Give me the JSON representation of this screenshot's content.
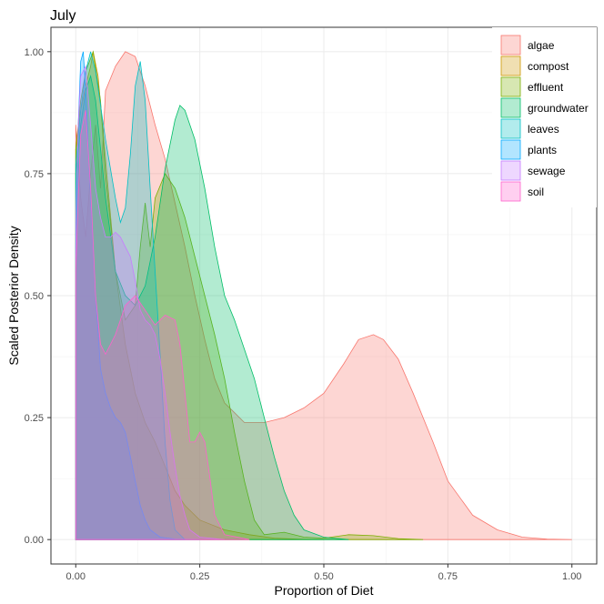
{
  "chart_data": {
    "type": "area",
    "title": "July",
    "xlabel": "Proportion of Diet",
    "ylabel": "Scaled Posterior Density",
    "xlim": [
      -0.05,
      1.05
    ],
    "ylim": [
      -0.05,
      1.05
    ],
    "x_ticks": [
      {
        "value": 0,
        "label": "0.00"
      },
      {
        "value": 0.25,
        "label": "0.25"
      },
      {
        "value": 0.5,
        "label": "0.50"
      },
      {
        "value": 0.75,
        "label": "0.75"
      },
      {
        "value": 1.0,
        "label": "1.00"
      }
    ],
    "y_ticks": [
      {
        "value": 0,
        "label": "0.00"
      },
      {
        "value": 0.25,
        "label": "0.25"
      },
      {
        "value": 0.5,
        "label": "0.50"
      },
      {
        "value": 0.75,
        "label": "0.75"
      },
      {
        "value": 1.0,
        "label": "1.00"
      }
    ],
    "grid": true,
    "legend_position": "top-right",
    "series": [
      {
        "name": "algae",
        "color": "#F8766D",
        "points": [
          [
            0,
            0.85
          ],
          [
            0.01,
            0.7
          ],
          [
            0.02,
            0.62
          ],
          [
            0.03,
            0.75
          ],
          [
            0.04,
            0.85
          ],
          [
            0.05,
            0.72
          ],
          [
            0.06,
            0.92
          ],
          [
            0.08,
            0.97
          ],
          [
            0.1,
            1.0
          ],
          [
            0.12,
            0.99
          ],
          [
            0.14,
            0.93
          ],
          [
            0.16,
            0.85
          ],
          [
            0.18,
            0.78
          ],
          [
            0.2,
            0.69
          ],
          [
            0.22,
            0.6
          ],
          [
            0.24,
            0.5
          ],
          [
            0.26,
            0.41
          ],
          [
            0.28,
            0.33
          ],
          [
            0.3,
            0.28
          ],
          [
            0.32,
            0.26
          ],
          [
            0.34,
            0.24
          ],
          [
            0.38,
            0.24
          ],
          [
            0.42,
            0.25
          ],
          [
            0.46,
            0.27
          ],
          [
            0.5,
            0.3
          ],
          [
            0.54,
            0.36
          ],
          [
            0.57,
            0.41
          ],
          [
            0.6,
            0.42
          ],
          [
            0.62,
            0.41
          ],
          [
            0.65,
            0.37
          ],
          [
            0.68,
            0.3
          ],
          [
            0.72,
            0.2
          ],
          [
            0.75,
            0.12
          ],
          [
            0.8,
            0.05
          ],
          [
            0.85,
            0.02
          ],
          [
            0.9,
            0.005
          ],
          [
            0.95,
            0.001
          ],
          [
            1.0,
            0
          ]
        ]
      },
      {
        "name": "compost",
        "color": "#CD9600",
        "points": [
          [
            0,
            0.8
          ],
          [
            0.01,
            0.88
          ],
          [
            0.02,
            0.93
          ],
          [
            0.03,
            0.97
          ],
          [
            0.035,
            1.0
          ],
          [
            0.045,
            0.95
          ],
          [
            0.06,
            0.78
          ],
          [
            0.08,
            0.55
          ],
          [
            0.1,
            0.4
          ],
          [
            0.12,
            0.3
          ],
          [
            0.14,
            0.24
          ],
          [
            0.16,
            0.2
          ],
          [
            0.18,
            0.15
          ],
          [
            0.2,
            0.1
          ],
          [
            0.22,
            0.07
          ],
          [
            0.25,
            0.04
          ],
          [
            0.3,
            0.02
          ],
          [
            0.35,
            0.01
          ],
          [
            0.4,
            0.003
          ],
          [
            0.45,
            0.001
          ],
          [
            0.5,
            0
          ]
        ]
      },
      {
        "name": "effluent",
        "color": "#7CAE00",
        "points": [
          [
            0,
            0.8
          ],
          [
            0.01,
            0.9
          ],
          [
            0.02,
            0.96
          ],
          [
            0.035,
            1.0
          ],
          [
            0.05,
            0.9
          ],
          [
            0.06,
            0.75
          ],
          [
            0.08,
            0.55
          ],
          [
            0.1,
            0.45
          ],
          [
            0.12,
            0.48
          ],
          [
            0.13,
            0.6
          ],
          [
            0.14,
            0.69
          ],
          [
            0.15,
            0.6
          ],
          [
            0.16,
            0.7
          ],
          [
            0.18,
            0.75
          ],
          [
            0.2,
            0.72
          ],
          [
            0.22,
            0.66
          ],
          [
            0.24,
            0.58
          ],
          [
            0.26,
            0.5
          ],
          [
            0.28,
            0.42
          ],
          [
            0.3,
            0.33
          ],
          [
            0.32,
            0.22
          ],
          [
            0.34,
            0.12
          ],
          [
            0.36,
            0.04
          ],
          [
            0.38,
            0.01
          ],
          [
            0.42,
            0.015
          ],
          [
            0.46,
            0.005
          ],
          [
            0.5,
            0.003
          ],
          [
            0.55,
            0.01
          ],
          [
            0.6,
            0.008
          ],
          [
            0.65,
            0.002
          ],
          [
            0.7,
            0
          ]
        ]
      },
      {
        "name": "groundwater",
        "color": "#00BE67",
        "points": [
          [
            0,
            0.75
          ],
          [
            0.01,
            0.85
          ],
          [
            0.02,
            0.92
          ],
          [
            0.03,
            0.95
          ],
          [
            0.04,
            0.9
          ],
          [
            0.06,
            0.7
          ],
          [
            0.08,
            0.55
          ],
          [
            0.1,
            0.5
          ],
          [
            0.12,
            0.48
          ],
          [
            0.14,
            0.52
          ],
          [
            0.16,
            0.62
          ],
          [
            0.18,
            0.76
          ],
          [
            0.2,
            0.86
          ],
          [
            0.21,
            0.89
          ],
          [
            0.22,
            0.88
          ],
          [
            0.24,
            0.82
          ],
          [
            0.26,
            0.72
          ],
          [
            0.28,
            0.6
          ],
          [
            0.3,
            0.5
          ],
          [
            0.32,
            0.45
          ],
          [
            0.34,
            0.39
          ],
          [
            0.36,
            0.33
          ],
          [
            0.38,
            0.25
          ],
          [
            0.4,
            0.17
          ],
          [
            0.42,
            0.1
          ],
          [
            0.44,
            0.05
          ],
          [
            0.46,
            0.02
          ],
          [
            0.5,
            0.005
          ],
          [
            0.55,
            0
          ]
        ]
      },
      {
        "name": "leaves",
        "color": "#00BFC4",
        "points": [
          [
            0,
            0.77
          ],
          [
            0.01,
            0.88
          ],
          [
            0.02,
            0.96
          ],
          [
            0.03,
            1.0
          ],
          [
            0.04,
            0.96
          ],
          [
            0.06,
            0.82
          ],
          [
            0.08,
            0.7
          ],
          [
            0.09,
            0.65
          ],
          [
            0.1,
            0.68
          ],
          [
            0.11,
            0.79
          ],
          [
            0.12,
            0.93
          ],
          [
            0.13,
            0.98
          ],
          [
            0.14,
            0.9
          ],
          [
            0.15,
            0.72
          ],
          [
            0.16,
            0.55
          ],
          [
            0.17,
            0.38
          ],
          [
            0.18,
            0.2
          ],
          [
            0.19,
            0.08
          ],
          [
            0.2,
            0.02
          ],
          [
            0.22,
            0
          ]
        ]
      },
      {
        "name": "plants",
        "color": "#00A9FF",
        "points": [
          [
            0,
            0.6
          ],
          [
            0.005,
            0.85
          ],
          [
            0.01,
            0.98
          ],
          [
            0.015,
            1.0
          ],
          [
            0.02,
            0.92
          ],
          [
            0.03,
            0.7
          ],
          [
            0.04,
            0.5
          ],
          [
            0.05,
            0.35
          ],
          [
            0.06,
            0.3
          ],
          [
            0.07,
            0.27
          ],
          [
            0.08,
            0.25
          ],
          [
            0.09,
            0.24
          ],
          [
            0.1,
            0.22
          ],
          [
            0.11,
            0.17
          ],
          [
            0.12,
            0.12
          ],
          [
            0.13,
            0.07
          ],
          [
            0.14,
            0.04
          ],
          [
            0.15,
            0.02
          ],
          [
            0.17,
            0.005
          ],
          [
            0.2,
            0.001
          ],
          [
            0.25,
            0
          ]
        ]
      },
      {
        "name": "sewage",
        "color": "#C77CFF",
        "points": [
          [
            0,
            0.65
          ],
          [
            0.005,
            0.85
          ],
          [
            0.01,
            0.95
          ],
          [
            0.02,
            0.97
          ],
          [
            0.03,
            0.85
          ],
          [
            0.04,
            0.72
          ],
          [
            0.05,
            0.66
          ],
          [
            0.06,
            0.62
          ],
          [
            0.07,
            0.62
          ],
          [
            0.08,
            0.63
          ],
          [
            0.09,
            0.62
          ],
          [
            0.1,
            0.6
          ],
          [
            0.11,
            0.58
          ],
          [
            0.12,
            0.53
          ],
          [
            0.13,
            0.47
          ],
          [
            0.14,
            0.45
          ],
          [
            0.15,
            0.44
          ],
          [
            0.16,
            0.42
          ],
          [
            0.17,
            0.37
          ],
          [
            0.18,
            0.3
          ],
          [
            0.19,
            0.22
          ],
          [
            0.2,
            0.15
          ],
          [
            0.21,
            0.09
          ],
          [
            0.22,
            0.05
          ],
          [
            0.23,
            0.02
          ],
          [
            0.25,
            0.005
          ],
          [
            0.3,
            0
          ]
        ]
      },
      {
        "name": "soil",
        "color": "#FF61CC",
        "points": [
          [
            0,
            0.55
          ],
          [
            0.005,
            0.7
          ],
          [
            0.01,
            0.83
          ],
          [
            0.02,
            0.88
          ],
          [
            0.03,
            0.72
          ],
          [
            0.04,
            0.5
          ],
          [
            0.05,
            0.4
          ],
          [
            0.06,
            0.38
          ],
          [
            0.08,
            0.42
          ],
          [
            0.1,
            0.48
          ],
          [
            0.12,
            0.5
          ],
          [
            0.14,
            0.47
          ],
          [
            0.16,
            0.44
          ],
          [
            0.18,
            0.46
          ],
          [
            0.2,
            0.45
          ],
          [
            0.21,
            0.4
          ],
          [
            0.22,
            0.3
          ],
          [
            0.23,
            0.2
          ],
          [
            0.24,
            0.2
          ],
          [
            0.25,
            0.22
          ],
          [
            0.26,
            0.2
          ],
          [
            0.27,
            0.13
          ],
          [
            0.28,
            0.05
          ],
          [
            0.3,
            0.01
          ],
          [
            0.35,
            0
          ]
        ]
      }
    ]
  }
}
